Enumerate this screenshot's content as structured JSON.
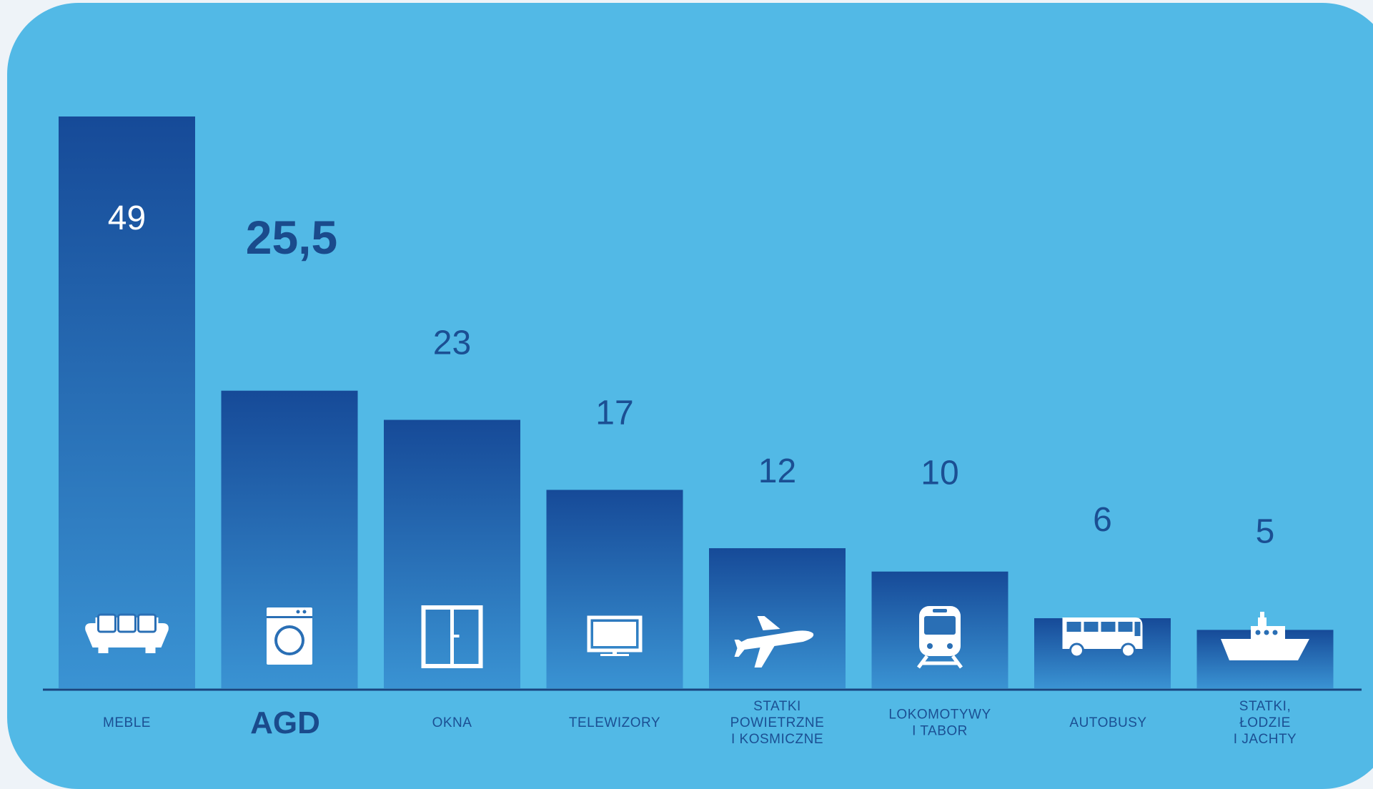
{
  "colors": {
    "background": "#52b9e6",
    "bar_top": "#164a98",
    "bar_bottom": "#3a93d3",
    "label": "#1b4f93",
    "icon": "#ffffff",
    "axis": "#1a4580"
  },
  "chart_data": {
    "type": "bar",
    "title": "",
    "xlabel": "",
    "ylabel": "",
    "ylim": [
      0,
      49
    ],
    "grid": false,
    "categories": [
      "MEBLE",
      "AGD",
      "OKNA",
      "TELEWIZORY",
      "STATKI\nPOWIETRZNE\nI KOSMICZNE",
      "LOKOMOTYWY\nI TABOR",
      "AUTOBUSY",
      "STATKI,\nŁODZIE\nI JACHTY"
    ],
    "values": [
      49,
      25.5,
      23,
      17,
      12,
      10,
      6,
      5
    ],
    "value_labels": [
      "49",
      "25,5",
      "23",
      "17",
      "12",
      "10",
      "6",
      "5"
    ],
    "highlighted_category": "AGD",
    "icons": [
      "sofa-icon",
      "washing-machine-icon",
      "window-icon",
      "tv-icon",
      "airplane-icon",
      "train-icon",
      "bus-icon",
      "ship-icon"
    ]
  }
}
